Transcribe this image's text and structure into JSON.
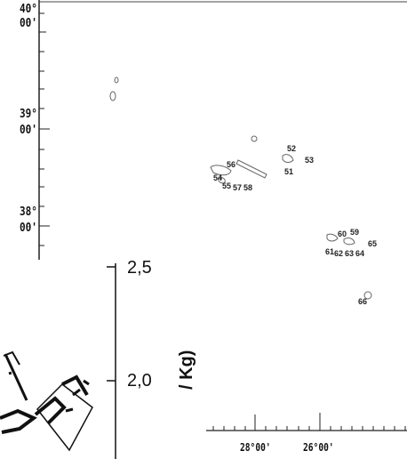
{
  "latitude_labels": [
    {
      "deg": "40°",
      "min": "00'"
    },
    {
      "deg": "39°",
      "min": "00'"
    },
    {
      "deg": "38°",
      "min": "00'"
    }
  ],
  "longitude_labels": [
    "28°00'",
    "26°00'"
  ],
  "stations": [
    "52",
    "53",
    "51",
    "56",
    "54",
    "55",
    "57",
    "58",
    "60",
    "59",
    "65",
    "61",
    "62",
    "63",
    "64",
    "66"
  ],
  "plot_axis": {
    "tick_labels": [
      "2,5",
      "2,0"
    ],
    "unit_fragment": "/ Kg)"
  },
  "colors": {
    "ink": "#111111",
    "outline": "#555555",
    "background": "#ffffff"
  }
}
